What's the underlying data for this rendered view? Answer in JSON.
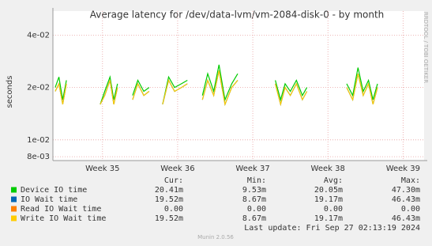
{
  "chart_data": {
    "type": "line",
    "title": "Average latency for /dev/data-lvm/vm-2084-disk-0 - by month",
    "y_label": "seconds",
    "side_label": "RRDTOOL / TOBI OETIKER",
    "log_y": true,
    "grid": true,
    "xlim": [
      34.34,
      39.28
    ],
    "xticks": [
      {
        "value": 35,
        "label": "Week 35"
      },
      {
        "value": 36,
        "label": "Week 36"
      },
      {
        "value": 37,
        "label": "Week 37"
      },
      {
        "value": 38,
        "label": "Week 38"
      },
      {
        "value": 39,
        "label": "Week 39"
      }
    ],
    "ylim": [
      0.0076,
      0.055
    ],
    "yticks": [
      {
        "value": 0.008,
        "label": "8e-03"
      },
      {
        "value": 0.01,
        "label": "1e-02"
      },
      {
        "value": 0.02,
        "label": "2e-02"
      },
      {
        "value": 0.04,
        "label": "4e-02"
      }
    ],
    "x": [
      34.37,
      34.42,
      34.47,
      34.52,
      34.57,
      34.84,
      34.86,
      34.97,
      35.03,
      35.1,
      35.15,
      35.2,
      35.25,
      35.4,
      35.47,
      35.55,
      35.62,
      35.68,
      35.8,
      35.88,
      35.96,
      36.05,
      36.13,
      36.2,
      36.33,
      36.4,
      36.48,
      36.55,
      36.63,
      36.72,
      36.8,
      36.86,
      37.3,
      37.37,
      37.43,
      37.5,
      37.58,
      37.66,
      37.72,
      37.78,
      38.25,
      38.33,
      38.4,
      38.47,
      38.54,
      38.6,
      38.66,
      38.72
    ],
    "series": [
      {
        "name": "Device IO time",
        "color": "#00cc00",
        "values": [
          0.02,
          0.023,
          0.017,
          0.022,
          null,
          0.021,
          null,
          0.016,
          0.019,
          0.023,
          0.017,
          0.021,
          null,
          0.018,
          0.022,
          0.019,
          0.02,
          null,
          0.016,
          0.023,
          0.02,
          0.021,
          0.022,
          null,
          0.018,
          0.024,
          0.019,
          0.027,
          0.017,
          0.021,
          0.024,
          null,
          0.022,
          0.017,
          0.021,
          0.019,
          0.022,
          0.018,
          0.02,
          null,
          0.021,
          0.018,
          0.026,
          0.019,
          0.022,
          0.017,
          0.021,
          null
        ]
      },
      {
        "name": "IO Wait time",
        "color": "#0066b3",
        "values": [
          0.019,
          0.021,
          0.016,
          0.021,
          null,
          0.02,
          null,
          0.016,
          0.018,
          0.022,
          0.016,
          0.02,
          null,
          0.017,
          0.021,
          0.018,
          0.019,
          null,
          0.016,
          0.022,
          0.019,
          0.02,
          0.021,
          null,
          0.017,
          0.022,
          0.018,
          0.025,
          0.016,
          0.02,
          0.022,
          null,
          0.021,
          0.016,
          0.02,
          0.018,
          0.021,
          0.017,
          0.019,
          null,
          0.02,
          0.017,
          0.024,
          0.018,
          0.021,
          0.016,
          0.02,
          null
        ]
      },
      {
        "name": "Read IO Wait time",
        "color": "#ff8000"
      },
      {
        "name": "Write IO Wait time",
        "color": "#ffcc00",
        "values": [
          0.019,
          0.021,
          0.016,
          0.021,
          null,
          0.02,
          null,
          0.016,
          0.018,
          0.022,
          0.016,
          0.02,
          null,
          0.017,
          0.021,
          0.018,
          0.019,
          null,
          0.016,
          0.022,
          0.019,
          0.02,
          0.021,
          null,
          0.017,
          0.022,
          0.018,
          0.025,
          0.016,
          0.02,
          0.022,
          null,
          0.021,
          0.016,
          0.02,
          0.018,
          0.021,
          0.017,
          0.019,
          null,
          0.02,
          0.017,
          0.024,
          0.018,
          0.021,
          0.016,
          0.02,
          null
        ]
      }
    ],
    "legend_table": {
      "headers": [
        "Cur:",
        "Min:",
        "Avg:",
        "Max:"
      ],
      "rows": [
        [
          "20.41m",
          "9.53m",
          "20.05m",
          "47.30m"
        ],
        [
          "19.52m",
          "8.67m",
          "19.17m",
          "46.43m"
        ],
        [
          "0.00",
          "0.00",
          "0.00",
          "0.00"
        ],
        [
          "19.52m",
          "8.67m",
          "19.17m",
          "46.43m"
        ]
      ]
    },
    "last_update": "Last update: Fri Sep 27 02:13:19 2024",
    "footer": "Munin 2.0.56"
  }
}
